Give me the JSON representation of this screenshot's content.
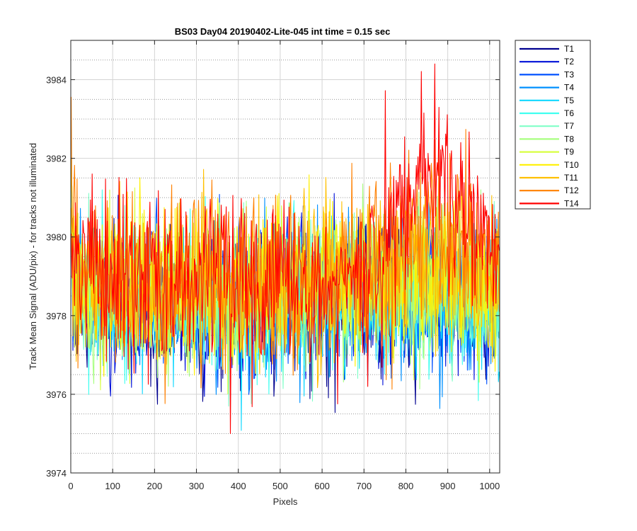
{
  "chart_data": {
    "type": "line",
    "title": "BS03 Day04 20190402-Lite-045 int time = 0.15 sec",
    "xlabel": "Pixels",
    "ylabel": "Track Mean Signal (ADU/pix) - for tracks not illuminated",
    "xlim": [
      0,
      1024
    ],
    "ylim": [
      3974,
      3985
    ],
    "xticks": [
      0,
      100,
      200,
      300,
      400,
      500,
      600,
      700,
      800,
      900,
      1000
    ],
    "yticks": [
      3974,
      3976,
      3978,
      3980,
      3982,
      3984
    ],
    "grid": true,
    "minor_grid_y": true,
    "legend_position": "outside-top-right",
    "series": [
      {
        "name": "T1",
        "color": "#00008F",
        "base": [
          [
            0,
            3978.3
          ],
          [
            300,
            3978.2
          ],
          [
            700,
            3978.4
          ],
          [
            1024,
            3978.2
          ]
        ],
        "noise": 0.9
      },
      {
        "name": "T2",
        "color": "#0010D8",
        "base": [
          [
            0,
            3978.3
          ],
          [
            300,
            3978.2
          ],
          [
            700,
            3978.4
          ],
          [
            1024,
            3978.3
          ]
        ],
        "noise": 0.9
      },
      {
        "name": "T3",
        "color": "#0050FF",
        "base": [
          [
            0,
            3978.4
          ],
          [
            300,
            3978.3
          ],
          [
            700,
            3978.5
          ],
          [
            1024,
            3978.3
          ]
        ],
        "noise": 0.9
      },
      {
        "name": "T4",
        "color": "#0090FF",
        "base": [
          [
            0,
            3978.4
          ],
          [
            300,
            3978.3
          ],
          [
            700,
            3978.5
          ],
          [
            1024,
            3978.4
          ]
        ],
        "noise": 0.9
      },
      {
        "name": "T5",
        "color": "#10D8FF",
        "base": [
          [
            0,
            3978.5
          ],
          [
            300,
            3978.4
          ],
          [
            700,
            3978.6
          ],
          [
            1024,
            3978.4
          ]
        ],
        "noise": 0.9
      },
      {
        "name": "T6",
        "color": "#40FFF0",
        "base": [
          [
            0,
            3978.5
          ],
          [
            300,
            3978.4
          ],
          [
            700,
            3978.6
          ],
          [
            1024,
            3978.5
          ]
        ],
        "noise": 0.9
      },
      {
        "name": "T7",
        "color": "#80FFC8",
        "base": [
          [
            0,
            3978.6
          ],
          [
            300,
            3978.5
          ],
          [
            700,
            3978.7
          ],
          [
            1024,
            3978.5
          ]
        ],
        "noise": 0.9
      },
      {
        "name": "T8",
        "color": "#A8FF80",
        "base": [
          [
            0,
            3978.6
          ],
          [
            300,
            3978.5
          ],
          [
            700,
            3978.8
          ],
          [
            1024,
            3978.6
          ]
        ],
        "noise": 0.95
      },
      {
        "name": "T9",
        "color": "#D8FF40",
        "base": [
          [
            0,
            3978.7
          ],
          [
            300,
            3978.6
          ],
          [
            700,
            3978.9
          ],
          [
            1024,
            3978.7
          ]
        ],
        "noise": 0.95
      },
      {
        "name": "T10",
        "color": "#FFF000",
        "base": [
          [
            0,
            3978.8
          ],
          [
            300,
            3978.7
          ],
          [
            700,
            3979.0
          ],
          [
            1024,
            3978.8
          ]
        ],
        "noise": 1.0
      },
      {
        "name": "T11",
        "color": "#FFC000",
        "base": [
          [
            0,
            3978.8
          ],
          [
            300,
            3978.7
          ],
          [
            650,
            3978.8
          ],
          [
            850,
            3979.5
          ],
          [
            1024,
            3978.9
          ]
        ],
        "noise": 1.0
      },
      {
        "name": "T12",
        "color": "#FF8000",
        "base": [
          [
            0,
            3979.0
          ],
          [
            300,
            3978.8
          ],
          [
            650,
            3979.0
          ],
          [
            850,
            3980.4
          ],
          [
            1024,
            3979.1
          ]
        ],
        "noise": 1.05
      },
      {
        "name": "T14",
        "color": "#FF0000",
        "base": [
          [
            0,
            3979.0
          ],
          [
            300,
            3978.9
          ],
          [
            680,
            3979.1
          ],
          [
            860,
            3981.8
          ],
          [
            1024,
            3979.4
          ]
        ],
        "noise": 1.1
      }
    ]
  }
}
